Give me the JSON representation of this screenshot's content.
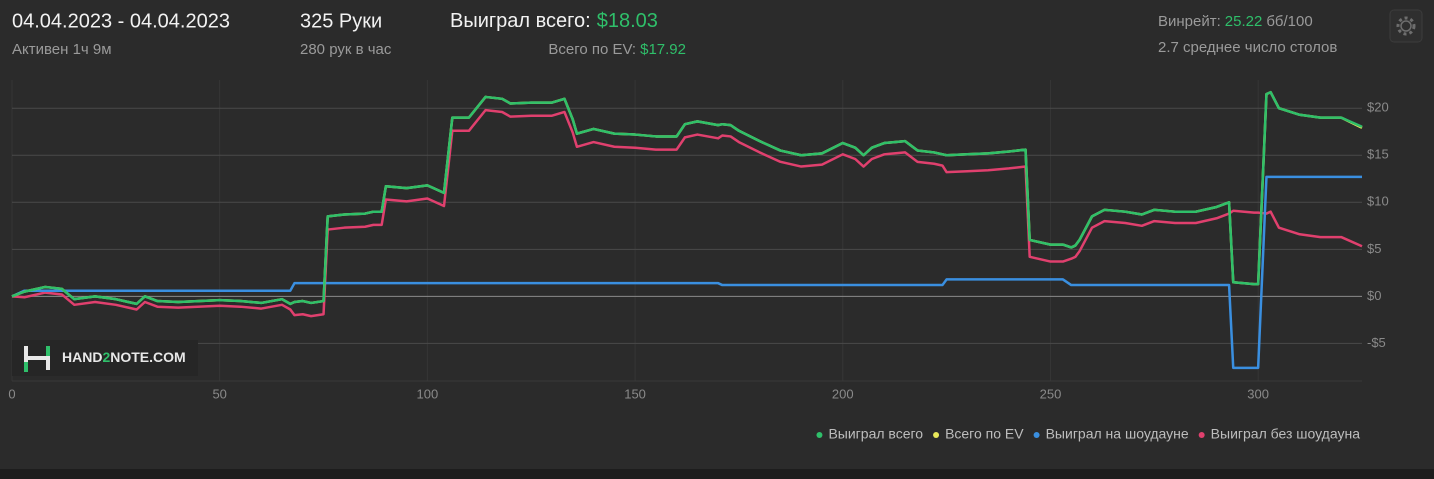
{
  "header": {
    "date_range": "04.04.2023 - 04.04.2023",
    "active": "Активен 1ч 9м",
    "hands": "325 Руки",
    "hands_per_hour": "280 рук в час",
    "won_label": "Выиграл всего:",
    "won_value": "$18.03",
    "ev_label": "Всего по EV:",
    "ev_value": "$17.92",
    "winrate_label": "Винрейт:",
    "winrate_value": "25.22",
    "winrate_unit": "бб/100",
    "tables": "2.7 среднее число столов"
  },
  "watermark": {
    "part1": "HAND",
    "part2": "2",
    "part3": "NOTE.COM"
  },
  "chart_data": {
    "type": "line",
    "x": [
      0,
      3,
      8,
      12,
      15,
      20,
      25,
      30,
      32,
      35,
      40,
      50,
      55,
      60,
      65,
      67,
      68,
      70,
      72,
      75,
      76,
      80,
      85,
      87,
      89,
      90,
      95,
      100,
      104,
      106,
      110,
      114,
      118,
      120,
      125,
      130,
      133,
      135,
      136,
      140,
      145,
      150,
      155,
      160,
      162,
      165,
      170,
      171,
      173,
      175,
      180,
      185,
      190,
      195,
      200,
      203,
      205,
      207,
      210,
      215,
      218,
      222,
      224,
      225,
      230,
      235,
      240,
      244,
      245,
      250,
      253,
      255,
      256,
      257,
      260,
      263,
      268,
      272,
      275,
      280,
      285,
      290,
      293,
      294,
      299,
      300,
      302,
      303,
      305,
      310,
      315,
      320,
      325
    ],
    "series": [
      {
        "name": "Выиграл всего",
        "color": "#2fbf6a",
        "values": [
          0,
          0.5,
          1,
          0.8,
          -0.3,
          0,
          -0.3,
          -0.8,
          0,
          -0.5,
          -0.6,
          -0.4,
          -0.5,
          -0.7,
          -0.3,
          -0.8,
          -0.6,
          -0.5,
          -0.7,
          -0.5,
          8.5,
          8.7,
          8.8,
          9,
          9,
          11.7,
          11.5,
          11.8,
          11,
          19,
          19,
          21.2,
          21,
          20.5,
          20.6,
          20.6,
          21,
          18.8,
          17.3,
          17.8,
          17.3,
          17.2,
          17,
          17,
          18.3,
          18.6,
          18.2,
          18.3,
          18.2,
          17.6,
          16.5,
          15.5,
          15,
          15.2,
          16.3,
          15.8,
          15,
          15.8,
          16.3,
          16.5,
          15.5,
          15.3,
          15.1,
          15,
          15.1,
          15.2,
          15.4,
          15.6,
          6,
          5.5,
          5.5,
          5.2,
          5.4,
          6,
          8.5,
          9.2,
          9,
          8.7,
          9.2,
          9,
          9,
          9.5,
          10,
          1.5,
          1.3,
          1.3,
          21.5,
          21.7,
          20,
          19.3,
          19,
          19,
          18.03
        ]
      },
      {
        "name": "Всего по EV",
        "color": "#e8e85a",
        "values": [
          0,
          0.5,
          1,
          0.8,
          -0.3,
          0,
          -0.3,
          -0.8,
          0,
          -0.5,
          -0.6,
          -0.4,
          -0.5,
          -0.7,
          -0.3,
          -0.8,
          -0.6,
          -0.5,
          -0.7,
          -0.5,
          8.5,
          8.7,
          8.8,
          9,
          9,
          11.7,
          11.5,
          11.8,
          11,
          19,
          19,
          21.2,
          21,
          20.5,
          20.6,
          20.6,
          21,
          18.8,
          17.3,
          17.8,
          17.3,
          17.2,
          17,
          17,
          18.3,
          18.6,
          18.2,
          18.3,
          18.2,
          17.6,
          16.5,
          15.5,
          15,
          15.2,
          16.3,
          15.8,
          15,
          15.8,
          16.3,
          16.5,
          15.5,
          15.3,
          15.1,
          15,
          15.1,
          15.2,
          15.4,
          15.6,
          6,
          5.5,
          5.5,
          5.2,
          5.4,
          6,
          8.5,
          9.2,
          9,
          8.7,
          9.2,
          9,
          9,
          9.5,
          10,
          1.5,
          1.3,
          1.3,
          21.5,
          21.7,
          20,
          19.3,
          19,
          19,
          17.92
        ]
      },
      {
        "name": "Выиграл на шоудауне",
        "color": "#3a8fe0",
        "values": [
          0,
          0.6,
          0.6,
          0.6,
          0.6,
          0.6,
          0.6,
          0.6,
          0.6,
          0.6,
          0.6,
          0.6,
          0.6,
          0.6,
          0.6,
          0.6,
          1.4,
          1.4,
          1.4,
          1.4,
          1.4,
          1.4,
          1.4,
          1.4,
          1.4,
          1.4,
          1.4,
          1.4,
          1.4,
          1.4,
          1.4,
          1.4,
          1.4,
          1.4,
          1.4,
          1.4,
          1.4,
          1.4,
          1.4,
          1.4,
          1.4,
          1.4,
          1.4,
          1.4,
          1.4,
          1.4,
          1.4,
          1.2,
          1.2,
          1.2,
          1.2,
          1.2,
          1.2,
          1.2,
          1.2,
          1.2,
          1.2,
          1.2,
          1.2,
          1.2,
          1.2,
          1.2,
          1.2,
          1.8,
          1.8,
          1.8,
          1.8,
          1.8,
          1.8,
          1.8,
          1.8,
          1.2,
          1.2,
          1.2,
          1.2,
          1.2,
          1.2,
          1.2,
          1.2,
          1.2,
          1.2,
          1.2,
          1.2,
          -7.6,
          -7.6,
          -7.6,
          12.7,
          12.7,
          12.7,
          12.7,
          12.7,
          12.7,
          12.7
        ]
      },
      {
        "name": "Выиграл без шоудауна",
        "color": "#e0406e",
        "values": [
          0,
          -0.1,
          0.4,
          0.2,
          -0.9,
          -0.6,
          -0.9,
          -1.4,
          -0.6,
          -1.1,
          -1.2,
          -1.0,
          -1.1,
          -1.3,
          -0.9,
          -1.4,
          -2.0,
          -1.9,
          -2.1,
          -1.9,
          7.1,
          7.3,
          7.4,
          7.6,
          7.6,
          10.3,
          10.1,
          10.4,
          9.6,
          17.6,
          17.6,
          19.8,
          19.6,
          19.1,
          19.2,
          19.2,
          19.6,
          17.4,
          15.9,
          16.4,
          15.9,
          15.8,
          15.6,
          15.6,
          16.9,
          17.2,
          16.8,
          17.1,
          17.0,
          16.4,
          15.3,
          14.3,
          13.8,
          14.0,
          15.1,
          14.6,
          13.8,
          14.6,
          15.1,
          15.3,
          14.3,
          14.1,
          13.9,
          13.2,
          13.3,
          13.4,
          13.6,
          13.8,
          4.2,
          3.7,
          3.7,
          4.0,
          4.2,
          4.8,
          7.3,
          8.0,
          7.8,
          7.5,
          8.0,
          7.8,
          7.8,
          8.3,
          8.8,
          9.1,
          8.9,
          8.9,
          8.8,
          9.0,
          7.3,
          6.6,
          6.3,
          6.3,
          5.33
        ]
      }
    ],
    "xlim": [
      0,
      325
    ],
    "xticks": [
      0,
      50,
      100,
      150,
      200,
      250,
      300
    ],
    "ylim": [
      -9,
      23
    ],
    "yticks": [
      {
        "value": -5,
        "label": "-$5"
      },
      {
        "value": 0,
        "label": "$0"
      },
      {
        "value": 5,
        "label": "$5"
      },
      {
        "value": 10,
        "label": "$10"
      },
      {
        "value": 15,
        "label": "$15"
      },
      {
        "value": 20,
        "label": "$20"
      }
    ],
    "grid": true
  }
}
